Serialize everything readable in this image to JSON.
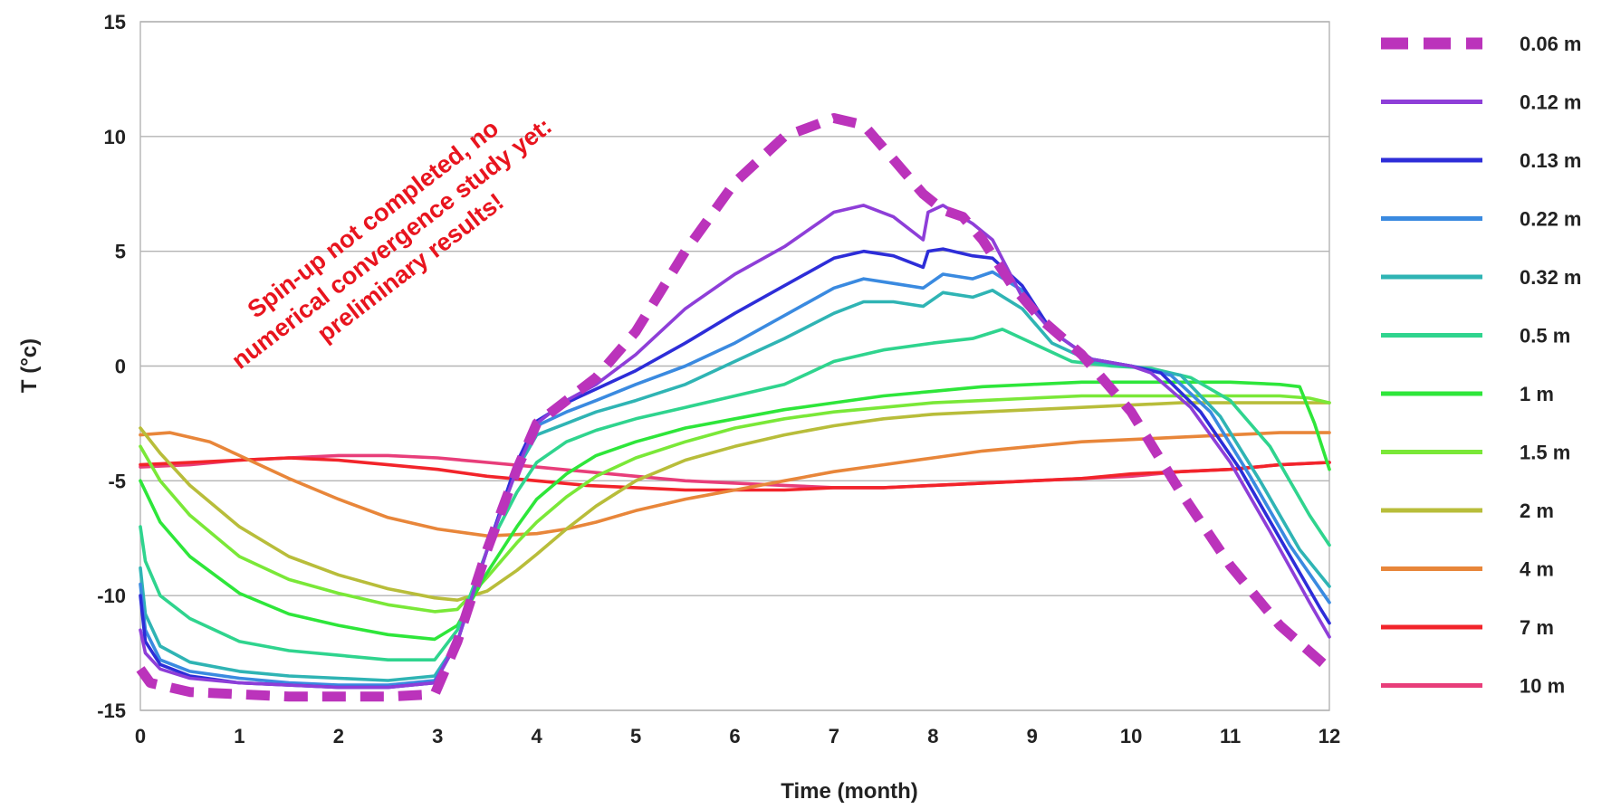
{
  "chart_data": {
    "type": "line",
    "title": "",
    "xlabel": "Time (month)",
    "ylabel": "T (°c)",
    "xlim": [
      0,
      12
    ],
    "ylim": [
      -15,
      15
    ],
    "xticks": [
      0,
      1,
      2,
      3,
      4,
      5,
      6,
      7,
      8,
      9,
      10,
      11,
      12
    ],
    "yticks": [
      15,
      10,
      5,
      0,
      -5,
      -10,
      -15
    ],
    "xtick_labels": [
      "0",
      "1",
      "2",
      "3",
      "4",
      "5",
      "6",
      "7",
      "8",
      "9",
      "10",
      "11",
      "12"
    ],
    "ytick_labels": [
      "15",
      "10",
      "5",
      "0",
      "-5",
      "-10",
      "-15"
    ],
    "grid": "horizontal",
    "legend_position": "right",
    "annotation": {
      "lines": [
        "Spin-up not completed, no",
        "numerical convergence study yet:",
        "preliminary results!"
      ],
      "color": "#e8141e"
    },
    "series": [
      {
        "name": "0.06 m",
        "color": "#bb33bb",
        "dashed": true,
        "x": [
          0,
          0.1,
          0.5,
          1,
          1.5,
          2,
          2.5,
          2.97,
          3.2,
          3.5,
          3.8,
          4.0,
          4.3,
          4.6,
          5.0,
          5.5,
          6.0,
          6.5,
          7.0,
          7.3,
          7.6,
          7.9,
          8.1,
          8.3,
          8.5,
          8.8,
          9.1,
          9.5,
          10.0,
          10.5,
          11.0,
          11.5,
          12.0
        ],
        "y": [
          -13.2,
          -13.8,
          -14.2,
          -14.3,
          -14.4,
          -14.4,
          -14.4,
          -14.3,
          -12.0,
          -8.0,
          -4.5,
          -2.5,
          -1.5,
          -0.5,
          1.5,
          5.0,
          8.0,
          10.0,
          10.8,
          10.5,
          9.0,
          7.5,
          6.8,
          6.5,
          5.5,
          3.5,
          2.0,
          0.5,
          -2.0,
          -5.5,
          -8.7,
          -11.3,
          -13.2
        ]
      },
      {
        "name": "0.12 m",
        "color": "#8e3ed8",
        "x": [
          0,
          0.05,
          0.2,
          0.5,
          1,
          1.5,
          2,
          2.5,
          2.97,
          3.2,
          3.5,
          3.8,
          4.0,
          4.3,
          4.6,
          5.0,
          5.5,
          6.0,
          6.5,
          7.0,
          7.3,
          7.6,
          7.9,
          7.95,
          8.1,
          8.4,
          8.6,
          8.9,
          9.2,
          9.6,
          10.0,
          10.2,
          10.6,
          11.0,
          11.4,
          11.8,
          12.0
        ],
        "y": [
          -11.5,
          -12.5,
          -13.2,
          -13.6,
          -13.8,
          -13.9,
          -14.0,
          -14.0,
          -13.8,
          -12.0,
          -8.0,
          -4.5,
          -2.5,
          -1.5,
          -0.8,
          0.5,
          2.5,
          4.0,
          5.2,
          6.7,
          7.0,
          6.5,
          5.5,
          6.7,
          7.0,
          6.2,
          5.5,
          3.0,
          1.5,
          0.3,
          0.0,
          -0.3,
          -1.8,
          -4.2,
          -7.2,
          -10.3,
          -11.8
        ]
      },
      {
        "name": "0.13 m",
        "color": "#2d2dd8",
        "x": [
          0,
          0.05,
          0.2,
          0.5,
          1,
          1.5,
          2,
          2.5,
          2.97,
          3.2,
          3.5,
          3.8,
          4.0,
          4.3,
          4.6,
          5.0,
          5.5,
          6.0,
          6.5,
          7.0,
          7.3,
          7.6,
          7.9,
          7.95,
          8.1,
          8.4,
          8.6,
          8.9,
          9.2,
          9.6,
          10.0,
          10.3,
          10.7,
          11.1,
          11.5,
          11.9,
          12.0
        ],
        "y": [
          -10.0,
          -12.0,
          -13.0,
          -13.5,
          -13.8,
          -13.9,
          -14.0,
          -14.0,
          -13.8,
          -12.0,
          -8.0,
          -4.2,
          -2.4,
          -1.6,
          -1.0,
          -0.2,
          1.0,
          2.3,
          3.5,
          4.7,
          5.0,
          4.8,
          4.3,
          5.0,
          5.1,
          4.8,
          4.7,
          3.5,
          1.5,
          0.3,
          0.0,
          -0.3,
          -2.0,
          -4.5,
          -7.5,
          -10.5,
          -11.2
        ]
      },
      {
        "name": "0.22 m",
        "color": "#3a8ae0",
        "x": [
          0,
          0.05,
          0.2,
          0.5,
          1,
          1.5,
          2,
          2.5,
          2.97,
          3.2,
          3.5,
          3.8,
          4.0,
          4.3,
          4.6,
          5.0,
          5.5,
          6.0,
          6.5,
          7.0,
          7.3,
          7.6,
          7.9,
          8.1,
          8.4,
          8.6,
          8.9,
          9.2,
          9.6,
          10.0,
          10.4,
          10.8,
          11.2,
          11.6,
          12.0
        ],
        "y": [
          -9.5,
          -11.5,
          -12.8,
          -13.3,
          -13.6,
          -13.8,
          -13.9,
          -13.9,
          -13.7,
          -12.0,
          -8.0,
          -4.2,
          -2.6,
          -2.0,
          -1.5,
          -0.8,
          0.0,
          1.0,
          2.2,
          3.4,
          3.8,
          3.6,
          3.4,
          4.0,
          3.8,
          4.1,
          3.3,
          1.5,
          0.3,
          0.0,
          -0.4,
          -2.0,
          -4.8,
          -7.8,
          -10.3
        ]
      },
      {
        "name": "0.32 m",
        "color": "#2fb4b4",
        "x": [
          0,
          0.05,
          0.2,
          0.5,
          1,
          1.5,
          2,
          2.5,
          2.97,
          3.2,
          3.5,
          3.8,
          4.0,
          4.3,
          4.6,
          5.0,
          5.5,
          6.0,
          6.5,
          7.0,
          7.3,
          7.6,
          7.9,
          8.1,
          8.4,
          8.6,
          8.9,
          9.2,
          9.6,
          10.0,
          10.5,
          10.9,
          11.3,
          11.7,
          12.0
        ],
        "y": [
          -8.8,
          -10.8,
          -12.2,
          -12.9,
          -13.3,
          -13.5,
          -13.6,
          -13.7,
          -13.5,
          -12.0,
          -8.0,
          -4.5,
          -3.0,
          -2.5,
          -2.0,
          -1.5,
          -0.8,
          0.2,
          1.2,
          2.3,
          2.8,
          2.8,
          2.6,
          3.2,
          3.0,
          3.3,
          2.5,
          1.0,
          0.2,
          0.0,
          -0.4,
          -2.2,
          -5.0,
          -8.0,
          -9.6
        ]
      },
      {
        "name": "0.5 m",
        "color": "#2fd48e",
        "x": [
          0,
          0.05,
          0.2,
          0.5,
          1,
          1.5,
          2,
          2.5,
          2.97,
          3.2,
          3.5,
          3.8,
          4.0,
          4.3,
          4.6,
          5.0,
          5.5,
          6.0,
          6.5,
          7.0,
          7.5,
          8.0,
          8.4,
          8.7,
          9.0,
          9.4,
          9.8,
          10.2,
          10.6,
          11.0,
          11.4,
          11.8,
          12.0
        ],
        "y": [
          -7.0,
          -8.5,
          -10.0,
          -11.0,
          -12.0,
          -12.4,
          -12.6,
          -12.8,
          -12.8,
          -11.5,
          -8.0,
          -5.5,
          -4.2,
          -3.3,
          -2.8,
          -2.3,
          -1.8,
          -1.3,
          -0.8,
          0.2,
          0.7,
          1.0,
          1.2,
          1.6,
          1.0,
          0.2,
          0.0,
          -0.1,
          -0.5,
          -1.5,
          -3.5,
          -6.5,
          -7.8
        ]
      },
      {
        "name": "1 m",
        "color": "#2ee63a",
        "x": [
          0,
          0.2,
          0.5,
          1,
          1.5,
          2,
          2.5,
          2.97,
          3.2,
          3.5,
          3.8,
          4.0,
          4.3,
          4.6,
          5.0,
          5.5,
          6.0,
          6.5,
          7.0,
          7.5,
          8.0,
          8.5,
          9.0,
          9.5,
          10.0,
          10.5,
          11.0,
          11.5,
          11.7,
          11.85,
          12.0
        ],
        "y": [
          -5.0,
          -6.8,
          -8.3,
          -9.9,
          -10.8,
          -11.3,
          -11.7,
          -11.9,
          -11.3,
          -9.0,
          -7.0,
          -5.8,
          -4.7,
          -3.9,
          -3.3,
          -2.7,
          -2.3,
          -1.9,
          -1.6,
          -1.3,
          -1.1,
          -0.9,
          -0.8,
          -0.7,
          -0.7,
          -0.7,
          -0.7,
          -0.8,
          -0.9,
          -2.5,
          -4.5
        ]
      },
      {
        "name": "1.5 m",
        "color": "#7ae838",
        "x": [
          0,
          0.2,
          0.5,
          1,
          1.5,
          2,
          2.5,
          2.97,
          3.2,
          3.5,
          3.8,
          4.0,
          4.3,
          4.6,
          5.0,
          5.5,
          6.0,
          6.5,
          7.0,
          7.5,
          8.0,
          8.5,
          9.0,
          9.5,
          10.0,
          10.5,
          11.0,
          11.5,
          11.8,
          12.0
        ],
        "y": [
          -3.5,
          -5.0,
          -6.5,
          -8.3,
          -9.3,
          -9.9,
          -10.4,
          -10.7,
          -10.6,
          -9.2,
          -7.7,
          -6.8,
          -5.7,
          -4.8,
          -4.0,
          -3.3,
          -2.7,
          -2.3,
          -2.0,
          -1.8,
          -1.6,
          -1.5,
          -1.4,
          -1.3,
          -1.3,
          -1.3,
          -1.3,
          -1.3,
          -1.4,
          -1.6
        ]
      },
      {
        "name": "2 m",
        "color": "#b8bd3a",
        "x": [
          0,
          0.2,
          0.5,
          1,
          1.5,
          2,
          2.5,
          2.97,
          3.2,
          3.5,
          3.8,
          4.0,
          4.3,
          4.6,
          5.0,
          5.5,
          6.0,
          6.5,
          7.0,
          7.5,
          8.0,
          8.5,
          9.0,
          9.5,
          10.0,
          10.5,
          11.0,
          11.5,
          12.0
        ],
        "y": [
          -2.7,
          -3.8,
          -5.2,
          -7.0,
          -8.3,
          -9.1,
          -9.7,
          -10.1,
          -10.2,
          -9.8,
          -8.9,
          -8.2,
          -7.1,
          -6.1,
          -5.0,
          -4.1,
          -3.5,
          -3.0,
          -2.6,
          -2.3,
          -2.1,
          -2.0,
          -1.9,
          -1.8,
          -1.7,
          -1.6,
          -1.6,
          -1.6,
          -1.6
        ]
      },
      {
        "name": "4 m",
        "color": "#e8863a",
        "x": [
          0,
          0.3,
          0.7,
          1,
          1.5,
          2,
          2.5,
          3,
          3.5,
          4,
          4.3,
          4.6,
          5.0,
          5.5,
          6.0,
          6.5,
          7.0,
          7.5,
          8.0,
          8.5,
          9.0,
          9.5,
          10.0,
          10.5,
          11.0,
          11.5,
          12.0
        ],
        "y": [
          -3.0,
          -2.9,
          -3.3,
          -3.9,
          -4.9,
          -5.8,
          -6.6,
          -7.1,
          -7.4,
          -7.3,
          -7.1,
          -6.8,
          -6.3,
          -5.8,
          -5.4,
          -5.0,
          -4.6,
          -4.3,
          -4.0,
          -3.7,
          -3.5,
          -3.3,
          -3.2,
          -3.1,
          -3.0,
          -2.9,
          -2.9
        ]
      },
      {
        "name": "7 m",
        "color": "#f2242a",
        "x": [
          0,
          0.5,
          1,
          1.5,
          2,
          2.5,
          3,
          3.5,
          4,
          4.5,
          5,
          5.5,
          6,
          6.5,
          7,
          7.5,
          8,
          8.5,
          9,
          9.5,
          10,
          10.5,
          11,
          11.5,
          12
        ],
        "y": [
          -4.3,
          -4.2,
          -4.1,
          -4.0,
          -4.1,
          -4.3,
          -4.5,
          -4.8,
          -5.0,
          -5.2,
          -5.3,
          -5.4,
          -5.4,
          -5.4,
          -5.3,
          -5.3,
          -5.2,
          -5.1,
          -5.0,
          -4.9,
          -4.7,
          -4.6,
          -4.5,
          -4.3,
          -4.2
        ]
      },
      {
        "name": "10 m",
        "color": "#e83e7a",
        "x": [
          0,
          0.5,
          1,
          1.5,
          2,
          2.5,
          3,
          3.5,
          4,
          4.5,
          5,
          5.5,
          6,
          6.5,
          7,
          7.5,
          8,
          8.5,
          9,
          9.5,
          10,
          10.5,
          11,
          11.5,
          12
        ],
        "y": [
          -4.4,
          -4.3,
          -4.1,
          -4.0,
          -3.9,
          -3.9,
          -4.0,
          -4.2,
          -4.4,
          -4.6,
          -4.8,
          -5.0,
          -5.1,
          -5.2,
          -5.3,
          -5.3,
          -5.2,
          -5.1,
          -5.0,
          -4.9,
          -4.8,
          -4.6,
          -4.5,
          -4.3,
          -4.2
        ]
      }
    ]
  }
}
